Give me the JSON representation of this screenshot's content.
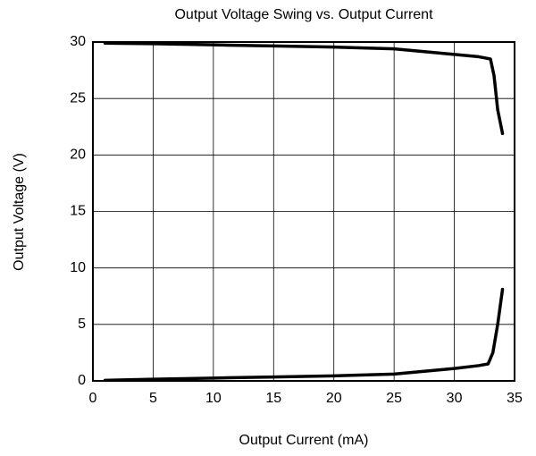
{
  "chart_data": {
    "type": "line",
    "title": "Output Voltage Swing vs. Output Current",
    "xlabel": "Output Current (mA)",
    "ylabel": "Output Voltage (V)",
    "series": [
      {
        "color": "#000000",
        "x": [
          1,
          5,
          10,
          15,
          20,
          25,
          27,
          30,
          32,
          32.5,
          33,
          33.3,
          33.6,
          34
        ],
        "values": [
          29.9,
          29.85,
          29.75,
          29.65,
          29.55,
          29.4,
          29.2,
          28.9,
          28.7,
          28.6,
          28.5,
          27,
          24,
          21.9
        ]
      },
      {
        "color": "#000000",
        "x": [
          1,
          5,
          10,
          15,
          20,
          25,
          27,
          30,
          32,
          32.8,
          33.2,
          33.6,
          34
        ],
        "values": [
          0.05,
          0.15,
          0.25,
          0.35,
          0.45,
          0.6,
          0.8,
          1.1,
          1.35,
          1.5,
          2.5,
          5,
          8.1
        ]
      }
    ],
    "xlim": [
      0,
      35
    ],
    "xticks": [
      0,
      5,
      10,
      15,
      20,
      25,
      30,
      35
    ],
    "ylim": [
      0,
      30
    ],
    "yticks": [
      0,
      5,
      10,
      15,
      20,
      25,
      30
    ],
    "grid": true
  }
}
